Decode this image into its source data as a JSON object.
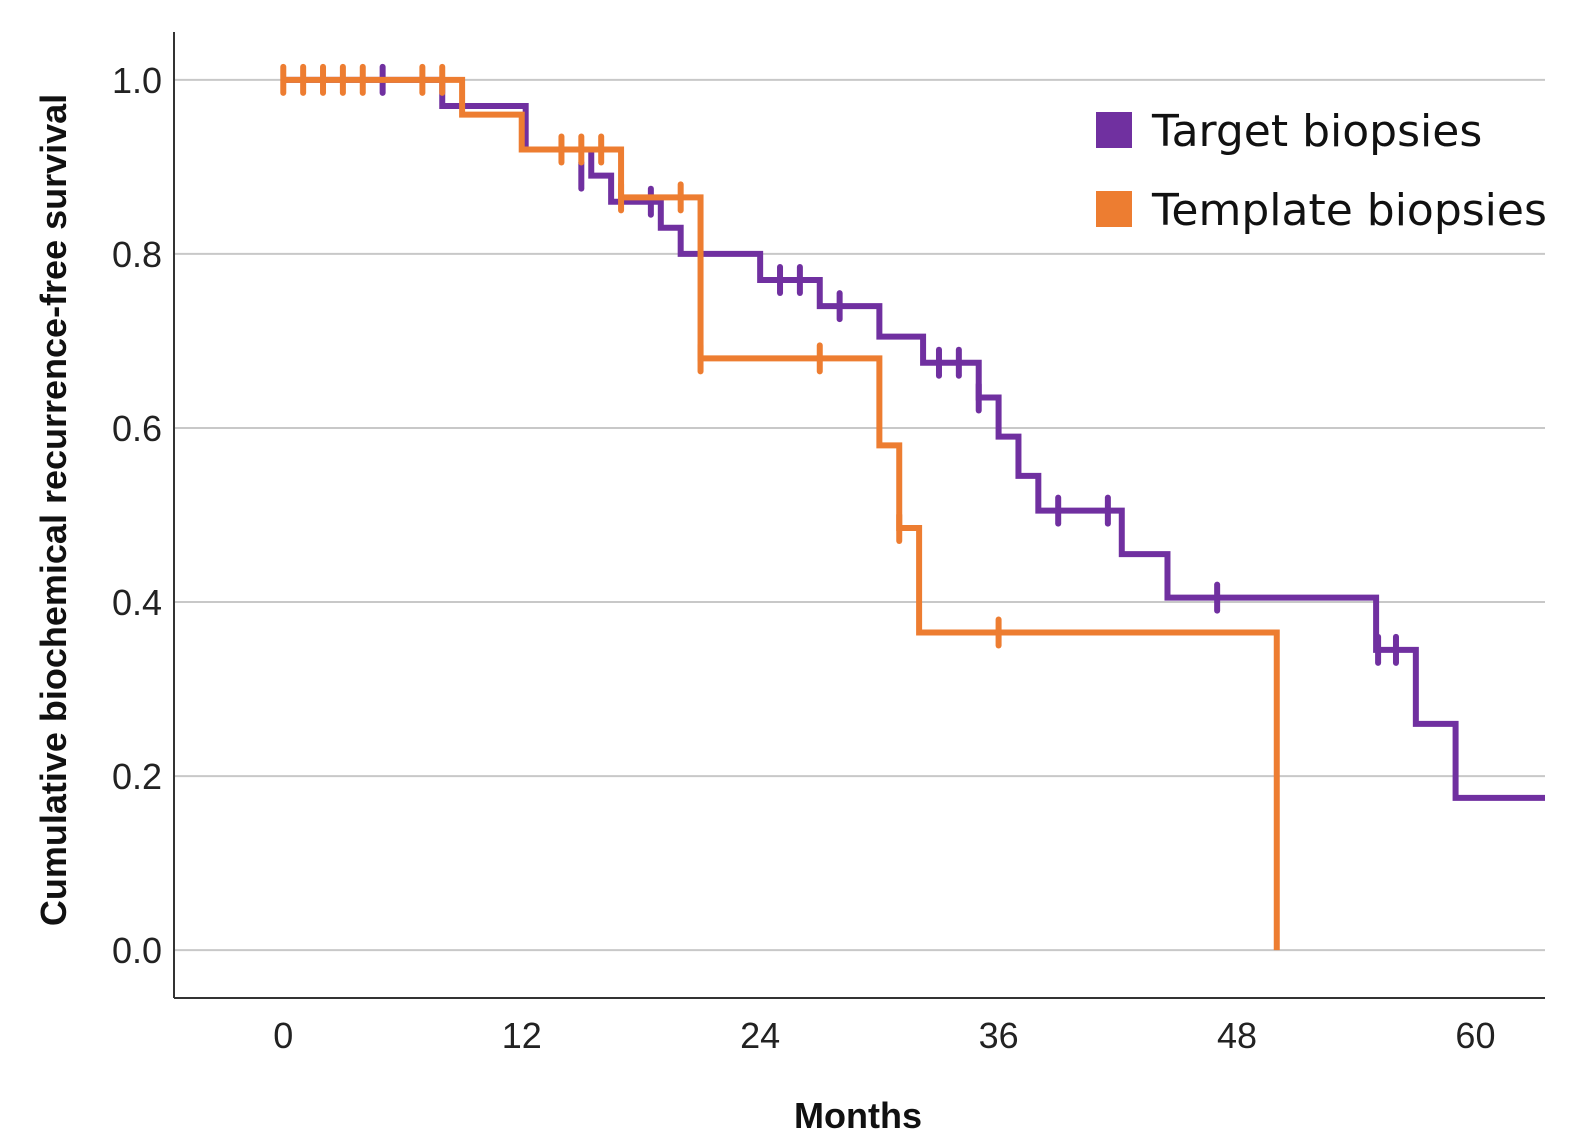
{
  "chart_data": {
    "type": "line",
    "subtype": "kaplan-meier step",
    "title": "",
    "xlabel": "Months",
    "ylabel": "Cumulative biochemical recurrence-free survival",
    "xlim": [
      -5.5,
      63.5
    ],
    "ylim": [
      -0.055,
      1.055
    ],
    "xticks": [
      0,
      12,
      24,
      36,
      48,
      60
    ],
    "yticks": [
      0.0,
      0.2,
      0.4,
      0.6,
      0.8,
      1.0
    ],
    "ytick_labels": [
      "0.0",
      "0.2",
      "0.4",
      "0.6",
      "0.8",
      "1.0"
    ],
    "grid": "horizontal",
    "legend_position": "top-right",
    "series": [
      {
        "name": "Target biopsies",
        "color": "#7030A0",
        "steps": [
          [
            0,
            1.0
          ],
          [
            8,
            0.97
          ],
          [
            12.2,
            0.92
          ],
          [
            15.5,
            0.89
          ],
          [
            16.5,
            0.86
          ],
          [
            19,
            0.83
          ],
          [
            20,
            0.8
          ],
          [
            24,
            0.77
          ],
          [
            27,
            0.74
          ],
          [
            30,
            0.705
          ],
          [
            32.2,
            0.675
          ],
          [
            35,
            0.635
          ],
          [
            36,
            0.59
          ],
          [
            37,
            0.545
          ],
          [
            38,
            0.505
          ],
          [
            42.2,
            0.455
          ],
          [
            44.5,
            0.405
          ],
          [
            55,
            0.345
          ],
          [
            57,
            0.26
          ],
          [
            59,
            0.175
          ],
          [
            63.5,
            0.175
          ]
        ],
        "censored": [
          [
            5,
            1.0
          ],
          [
            15,
            0.89
          ],
          [
            18.5,
            0.86
          ],
          [
            25,
            0.77
          ],
          [
            26,
            0.77
          ],
          [
            28,
            0.74
          ],
          [
            33,
            0.675
          ],
          [
            34,
            0.675
          ],
          [
            35,
            0.635
          ],
          [
            39,
            0.505
          ],
          [
            41.5,
            0.505
          ],
          [
            47,
            0.405
          ],
          [
            55.1,
            0.345
          ],
          [
            56,
            0.345
          ]
        ]
      },
      {
        "name": "Template biopsies",
        "color": "#ED7D31",
        "steps": [
          [
            0,
            1.0
          ],
          [
            9,
            0.96
          ],
          [
            12,
            0.92
          ],
          [
            17,
            0.865
          ],
          [
            21,
            0.68
          ],
          [
            30,
            0.58
          ],
          [
            31,
            0.485
          ],
          [
            32,
            0.365
          ],
          [
            50,
            0.0
          ]
        ],
        "censored": [
          [
            0,
            1.0
          ],
          [
            1,
            1.0
          ],
          [
            2,
            1.0
          ],
          [
            3,
            1.0
          ],
          [
            4,
            1.0
          ],
          [
            7,
            1.0
          ],
          [
            8,
            1.0
          ],
          [
            14,
            0.92
          ],
          [
            15,
            0.92
          ],
          [
            16,
            0.92
          ],
          [
            17,
            0.865
          ],
          [
            20,
            0.865
          ],
          [
            21,
            0.68
          ],
          [
            27,
            0.68
          ],
          [
            31,
            0.485
          ],
          [
            36,
            0.365
          ]
        ]
      }
    ]
  }
}
